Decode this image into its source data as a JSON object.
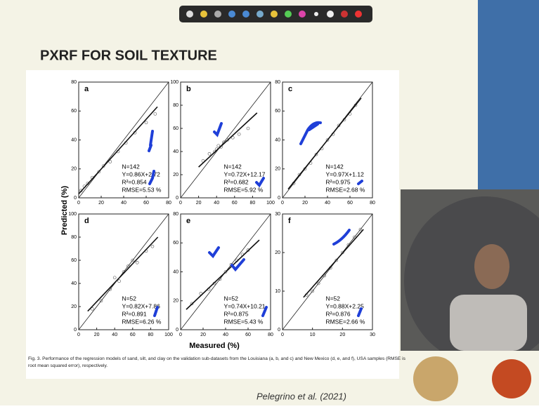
{
  "slide": {
    "title": "PXRF FOR SOIL TEXTURE",
    "footer": "Pelegrino et al. (2021)"
  },
  "figure": {
    "ylabel": "Predicted (%)",
    "xlabel": "Measured (%)",
    "caption": [
      "Fig. 3. Performance of the regression models of sand, silt, and clay on the validation sub-datasets from the Louisiana (a, b, and c) and New Mexico (d, e, and f), USA samples (RMSE is",
      "root mean squared error), respectively."
    ]
  },
  "chart_data": [
    {
      "type": "scatter",
      "label": "a",
      "xlim": [
        0,
        80
      ],
      "ylim": [
        0,
        80
      ],
      "xticks": [
        0,
        20,
        40,
        60,
        80
      ],
      "yticks": [
        0,
        20,
        40,
        60,
        80
      ],
      "x": [
        2,
        5,
        8,
        12,
        18,
        22,
        28,
        35,
        42,
        50,
        60,
        68
      ],
      "y": [
        5,
        8,
        10,
        14,
        18,
        22,
        25,
        32,
        38,
        45,
        52,
        58
      ],
      "fit": {
        "x": [
          0,
          70
        ],
        "y": [
          2.72,
          62.9
        ]
      },
      "annotations": [
        "N=142",
        "Y=0.86X+2.72",
        "R²=0.854",
        "RMSE=5.53 %"
      ]
    },
    {
      "type": "scatter",
      "label": "b",
      "xlim": [
        0,
        100
      ],
      "ylim": [
        0,
        100
      ],
      "xticks": [
        0,
        20,
        40,
        60,
        80,
        100
      ],
      "yticks": [
        0,
        20,
        40,
        60,
        80,
        100
      ],
      "x": [
        25,
        32,
        38,
        40,
        42,
        45,
        48,
        52,
        58,
        65,
        75
      ],
      "y": [
        32,
        38,
        40,
        42,
        45,
        44,
        48,
        50,
        52,
        55,
        60
      ],
      "fit": {
        "x": [
          20,
          85
        ],
        "y": [
          26.6,
          73.4
        ]
      },
      "annotations": [
        "N=142",
        "Y=0.72X+12.17",
        "R²=0.682",
        "RMSE=5.92 %"
      ]
    },
    {
      "type": "scatter",
      "label": "c",
      "xlim": [
        0,
        80
      ],
      "ylim": [
        0,
        80
      ],
      "xticks": [
        0,
        20,
        40,
        60,
        80
      ],
      "yticks": [
        0,
        20,
        40,
        60,
        80
      ],
      "x": [
        10,
        15,
        20,
        25,
        30,
        35,
        40,
        45,
        50,
        55,
        60,
        65
      ],
      "y": [
        10,
        16,
        20,
        24,
        30,
        34,
        40,
        44,
        50,
        54,
        58,
        64
      ],
      "fit": {
        "x": [
          5,
          70
        ],
        "y": [
          6,
          69
        ]
      },
      "annotations": [
        "N=142",
        "Y=0.97X+1.12",
        "R²=0.975",
        "RMSE=2.68 %"
      ]
    },
    {
      "type": "scatter",
      "label": "d",
      "xlim": [
        0,
        100
      ],
      "ylim": [
        0,
        100
      ],
      "xticks": [
        0,
        20,
        40,
        60,
        80,
        100
      ],
      "yticks": [
        0,
        20,
        40,
        60,
        80,
        100
      ],
      "x": [
        15,
        25,
        35,
        40,
        45,
        50,
        55,
        60,
        65,
        75,
        82
      ],
      "y": [
        18,
        25,
        35,
        45,
        42,
        50,
        55,
        60,
        58,
        68,
        72
      ],
      "fit": {
        "x": [
          10,
          88
        ],
        "y": [
          16,
          80
        ]
      },
      "annotations": [
        "N=52",
        "Y=0.82X+7.86",
        "R²=0.891",
        "RMSE=6.26 %"
      ]
    },
    {
      "type": "scatter",
      "label": "e",
      "xlim": [
        0,
        80
      ],
      "ylim": [
        0,
        80
      ],
      "xticks": [
        0,
        20,
        40,
        60,
        80
      ],
      "yticks": [
        0,
        20,
        40,
        60,
        80
      ],
      "x": [
        10,
        18,
        25,
        30,
        35,
        40,
        45,
        50,
        55,
        60
      ],
      "y": [
        18,
        25,
        28,
        32,
        35,
        40,
        45,
        48,
        52,
        55
      ],
      "fit": {
        "x": [
          5,
          70
        ],
        "y": [
          14,
          62
        ]
      },
      "annotations": [
        "N=52",
        "Y=0.74X+10.21",
        "R²=0.875",
        "RMSE=5.43 %"
      ]
    },
    {
      "type": "scatter",
      "label": "f",
      "xlim": [
        0,
        30
      ],
      "ylim": [
        0,
        30
      ],
      "xticks": [
        0,
        10,
        20,
        30
      ],
      "yticks": [
        0,
        10,
        20,
        30
      ],
      "x": [
        8,
        10,
        12,
        14,
        16,
        18,
        20,
        22,
        24,
        26
      ],
      "y": [
        9,
        10,
        12,
        14,
        16,
        18,
        20,
        22,
        24,
        26
      ],
      "fit": {
        "x": [
          7,
          27
        ],
        "y": [
          8.4,
          26
        ]
      },
      "annotations": [
        "N=52",
        "Y=0.88X+2.25",
        "R²=0.876",
        "RMSE=2.66 %"
      ]
    }
  ]
}
